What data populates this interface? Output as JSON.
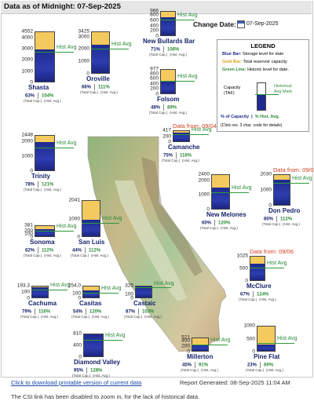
{
  "header": {
    "title": "Data as of Midnight: 07-Sep-2025"
  },
  "change_date": {
    "label": "Change Date:",
    "value": "07-Sep-2025",
    "icon": "calendar-icon"
  },
  "legend": {
    "title": "LEGEND",
    "blue_key": "Blue Bar:",
    "blue_text": "Storage level for date",
    "gold_key": "Gold Bar:",
    "gold_text": "Total reservoir capacity",
    "green_key": "Green Line:",
    "green_text": "Historic level for date.",
    "cap_label_1": "Capacity",
    "cap_label_2": "(TAF)",
    "hist_label_1": "Historical",
    "hist_label_2": "Avg Mark",
    "pct_cap": "% of Capacity",
    "pct_hist": "% Hist. Avg.",
    "note": "(Click res. 3 char. code for details)"
  },
  "colors": {
    "blue": "#1e2a8e",
    "gold": "#f4c95e",
    "green": "#2e9a3a",
    "red_note": "#d04020",
    "link": "#1a4aa8"
  },
  "hist_avg_label": "Hist Avg",
  "total_cap_label": "(Total Cap.)",
  "hist_avg_sub": "(Hist. Avg.)",
  "reservoirs": [
    {
      "id": "shasta",
      "name": "Shasta",
      "ticks": [
        "4552",
        "4000",
        "3000",
        "2000",
        "1000",
        "0"
      ],
      "capacity": 4552,
      "storage_pct": 63,
      "hist_pct": 104,
      "pct_cap_label": "63%",
      "pct_hist_label": "104%"
    },
    {
      "id": "oroville",
      "name": "Oroville",
      "ticks": [
        "3425",
        "3000",
        "2000",
        "1000",
        "0"
      ],
      "capacity": 3425,
      "storage_pct": 66,
      "hist_pct": 111,
      "pct_cap_label": "66%",
      "pct_hist_label": "111%"
    },
    {
      "id": "new-bullards-bar",
      "name": "New Bullards Bar",
      "ticks": [
        "966",
        "800",
        "600",
        "400",
        "200",
        "0"
      ],
      "capacity": 966,
      "storage_pct": 71,
      "hist_pct": 106,
      "pct_cap_label": "71%",
      "pct_hist_label": "106%"
    },
    {
      "id": "folsom",
      "name": "Folsom",
      "ticks": [
        "977",
        "800",
        "600",
        "400",
        "200",
        "0"
      ],
      "capacity": 977,
      "storage_pct": 48,
      "hist_pct": 89,
      "pct_cap_label": "48%",
      "pct_hist_label": "89%"
    },
    {
      "id": "camanche",
      "name": "Camanche",
      "ticks": [
        "417",
        "200",
        "0"
      ],
      "capacity": 417,
      "storage_pct": 75,
      "hist_pct": 118,
      "pct_cap_label": "75%",
      "pct_hist_label": "118%",
      "data_from": "Data from: 09/04"
    },
    {
      "id": "trinity",
      "name": "Trinity",
      "ticks": [
        "2448",
        "2000",
        "1000",
        "0"
      ],
      "capacity": 2448,
      "storage_pct": 78,
      "hist_pct": 121,
      "pct_cap_label": "78%",
      "pct_hist_label": "121%"
    },
    {
      "id": "new-melones",
      "name": "New Melones",
      "ticks": [
        "2400",
        "2000",
        "1000",
        "0"
      ],
      "capacity": 2400,
      "storage_pct": 60,
      "hist_pct": 120,
      "pct_cap_label": "60%",
      "pct_hist_label": "120%"
    },
    {
      "id": "don-pedro",
      "name": "Don Pedro",
      "ticks": [
        "2030",
        "1000",
        "0"
      ],
      "capacity": 2030,
      "storage_pct": 80,
      "hist_pct": 112,
      "pct_cap_label": "80%",
      "pct_hist_label": "112%",
      "data_from": "Data from: 09/04"
    },
    {
      "id": "sonoma",
      "name": "Sonoma",
      "ticks": [
        "381",
        "200",
        "100",
        "0"
      ],
      "capacity": 381,
      "storage_pct": 62,
      "hist_pct": 112,
      "pct_cap_label": "62%",
      "pct_hist_label": "112%"
    },
    {
      "id": "san-luis",
      "name": "San Luis",
      "ticks": [
        "2041",
        "1000",
        "0"
      ],
      "capacity": 2041,
      "storage_pct": 44,
      "hist_pct": 112,
      "pct_cap_label": "44%",
      "pct_hist_label": "112%"
    },
    {
      "id": "mcclure",
      "name": "McClure",
      "ticks": [
        "1025",
        "500",
        "0"
      ],
      "capacity": 1025,
      "storage_pct": 67,
      "hist_pct": 124,
      "pct_cap_label": "67%",
      "pct_hist_label": "124%",
      "data_from": "Data from: 09/06"
    },
    {
      "id": "cachuma",
      "name": "Cachuma",
      "ticks": [
        "193.3",
        "100",
        "0"
      ],
      "capacity": 193.3,
      "storage_pct": 79,
      "hist_pct": 116,
      "pct_cap_label": "79%",
      "pct_hist_label": "116%"
    },
    {
      "id": "casitas",
      "name": "Casitas",
      "ticks": [
        "254.0",
        "100",
        "0"
      ],
      "capacity": 254,
      "storage_pct": 54,
      "hist_pct": 120,
      "pct_cap_label": "54%",
      "pct_hist_label": "120%"
    },
    {
      "id": "castaic",
      "name": "Castaic",
      "ticks": [
        "325",
        "100",
        "0"
      ],
      "capacity": 325,
      "storage_pct": 87,
      "hist_pct": 103,
      "pct_cap_label": "87%",
      "pct_hist_label": "103%"
    },
    {
      "id": "diamond-valley",
      "name": "Diamond Valley",
      "ticks": [
        "810",
        "400",
        "0"
      ],
      "capacity": 810,
      "storage_pct": 95,
      "hist_pct": 128,
      "pct_cap_label": "95%",
      "pct_hist_label": "128%"
    },
    {
      "id": "millerton",
      "name": "Millerton",
      "ticks": [
        "521",
        "400",
        "200",
        "0"
      ],
      "capacity": 521,
      "storage_pct": 45,
      "hist_pct": 91,
      "pct_cap_label": "45%",
      "pct_hist_label": "91%"
    },
    {
      "id": "pine-flat",
      "name": "Pine Flat",
      "ticks": [
        "1000",
        "500",
        "0"
      ],
      "capacity": 1000,
      "storage_pct": 23,
      "hist_pct": 69,
      "pct_cap_label": "23%",
      "pct_hist_label": "69%"
    }
  ],
  "footer": {
    "download_link": "Click to download printable version of current data",
    "report_generated": "Report Generated: 08-Sep-2025 11:04 AM",
    "note": "The CSI link has been disabled to zoom in, for the lack of historical data."
  }
}
